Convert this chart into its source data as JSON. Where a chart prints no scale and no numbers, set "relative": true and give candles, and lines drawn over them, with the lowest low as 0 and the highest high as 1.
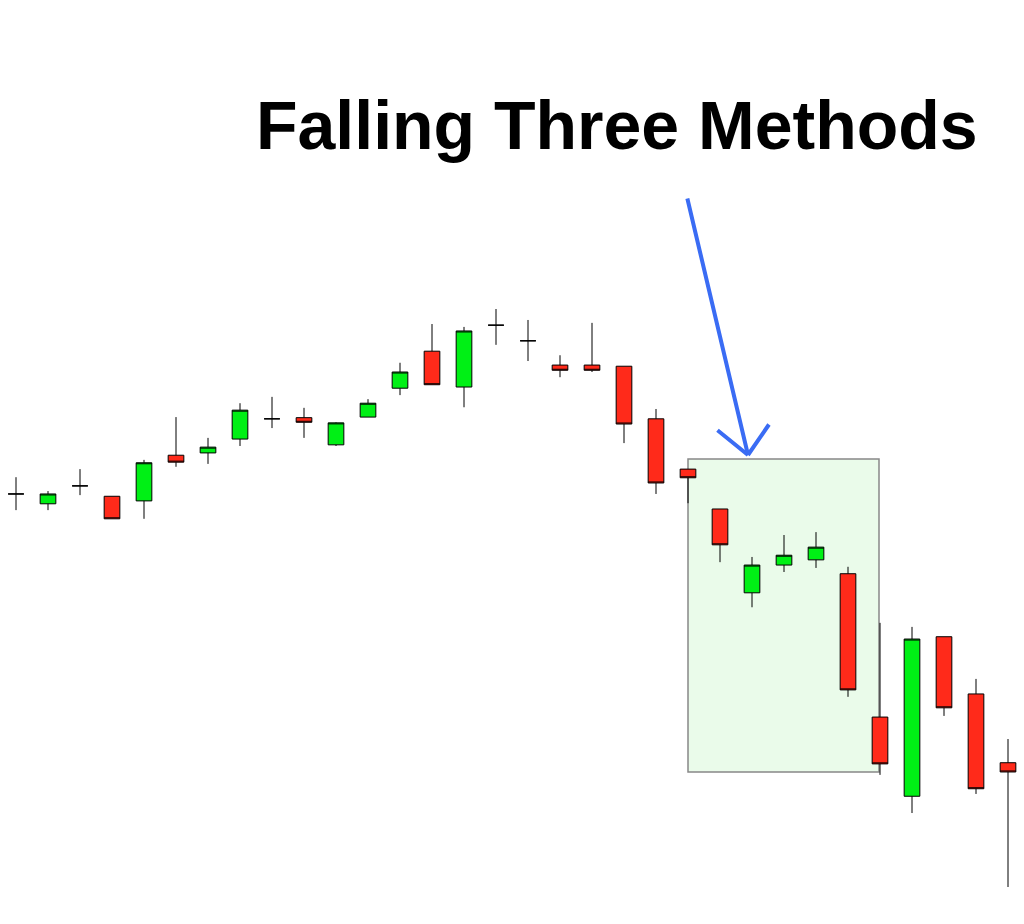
{
  "chart_data": {
    "type": "candlestick",
    "relative": true,
    "categories": [
      null,
      null,
      null,
      null,
      null,
      null,
      null,
      null,
      null,
      null,
      null,
      null,
      null,
      null,
      null,
      null,
      null,
      null,
      null,
      null,
      null,
      null,
      null,
      null,
      null,
      null,
      null,
      null,
      null,
      null,
      null,
      null
    ],
    "ohlc": [
      [
        0.68,
        0.709,
        0.652,
        0.68
      ],
      [
        0.663,
        0.685,
        0.652,
        0.68
      ],
      [
        0.694,
        0.723,
        0.678,
        0.694
      ],
      [
        0.676,
        0.676,
        0.637,
        0.637
      ],
      [
        0.668,
        0.739,
        0.637,
        0.734
      ],
      [
        0.747,
        0.813,
        0.727,
        0.735
      ],
      [
        0.751,
        0.777,
        0.732,
        0.761
      ],
      [
        0.775,
        0.837,
        0.763,
        0.825
      ],
      [
        0.81,
        0.848,
        0.794,
        0.81
      ],
      [
        0.812,
        0.829,
        0.777,
        0.804
      ],
      [
        0.765,
        0.804,
        0.763,
        0.803
      ],
      [
        0.813,
        0.844,
        0.813,
        0.837
      ],
      [
        0.863,
        0.907,
        0.851,
        0.891
      ],
      [
        0.927,
        0.974,
        0.869,
        0.869
      ],
      [
        0.865,
        0.969,
        0.83,
        0.962
      ],
      [
        0.972,
        1,
        0.938,
        0.972
      ],
      [
        0.945,
        0.981,
        0.91,
        0.945
      ],
      [
        0.903,
        0.92,
        0.882,
        0.894
      ],
      [
        0.903,
        0.976,
        0.891,
        0.894
      ],
      [
        0.901,
        0.901,
        0.768,
        0.801
      ],
      [
        0.81,
        0.827,
        0.68,
        0.699
      ],
      [
        0.723,
        0.723,
        0.664,
        0.708
      ],
      [
        0.654,
        0.654,
        0.562,
        0.592
      ],
      [
        0.509,
        0.571,
        0.484,
        0.557
      ],
      [
        0.557,
        0.609,
        0.545,
        0.574
      ],
      [
        0.566,
        0.614,
        0.552,
        0.588
      ],
      [
        0.542,
        0.554,
        0.329,
        0.341
      ],
      [
        0.294,
        0.457,
        0.194,
        0.213
      ],
      [
        0.157,
        0.45,
        0.128,
        0.429
      ],
      [
        0.433,
        0.433,
        0.296,
        0.31
      ],
      [
        0.334,
        0.36,
        0.161,
        0.17
      ],
      [
        0.215,
        0.256,
        0,
        0.199
      ]
    ],
    "colors": [
      "#000000",
      "#00f015",
      "#000000",
      "#ff2a1a",
      "#00f015",
      "#ff2a1a",
      "#00f015",
      "#00f015",
      "#000000",
      "#ff2a1a",
      "#00f015",
      "#00f015",
      "#00f015",
      "#ff2a1a",
      "#00f015",
      "#000000",
      "#000000",
      "#ff2a1a",
      "#ff2a1a",
      "#ff2a1a",
      "#ff2a1a",
      "#ff2a1a",
      "#ff2a1a",
      "#00f015",
      "#00f015",
      "#00f015",
      "#ff2a1a",
      "#ff2a1a",
      "#00f015",
      "#ff2a1a",
      "#ff2a1a",
      "#ff2a1a"
    ],
    "annotations": [
      "Falling Three Methods"
    ]
  }
}
